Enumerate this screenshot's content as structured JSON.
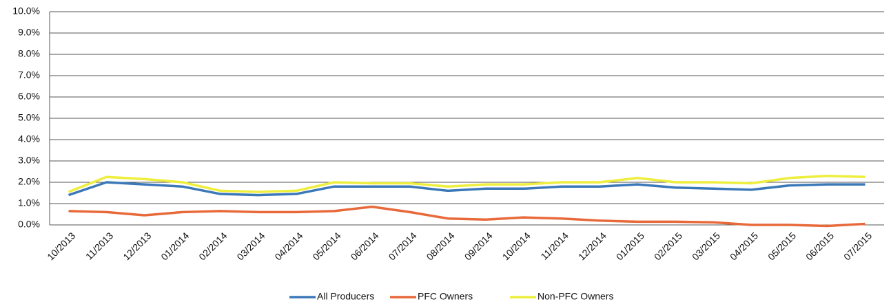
{
  "chart_data": {
    "type": "line",
    "categories": [
      "10/2013",
      "11/2013",
      "12/2013",
      "01/2014",
      "02/2014",
      "03/2014",
      "04/2014",
      "05/2014",
      "06/2014",
      "07/2014",
      "08/2014",
      "09/2014",
      "10/2014",
      "11/2014",
      "12/2014",
      "01/2015",
      "02/2015",
      "03/2015",
      "04/2015",
      "05/2015",
      "06/2015",
      "07/2015"
    ],
    "series": [
      {
        "name": "All Producers",
        "color": "#3b78b8",
        "values": [
          1.4,
          2.0,
          1.9,
          1.8,
          1.45,
          1.4,
          1.45,
          1.8,
          1.8,
          1.8,
          1.6,
          1.7,
          1.7,
          1.8,
          1.8,
          1.9,
          1.75,
          1.7,
          1.65,
          1.85,
          1.9,
          1.9
        ]
      },
      {
        "name": "PFC Owners",
        "color": "#e8693a",
        "values": [
          0.65,
          0.6,
          0.45,
          0.6,
          0.65,
          0.6,
          0.6,
          0.65,
          0.85,
          0.6,
          0.3,
          0.25,
          0.35,
          0.3,
          0.2,
          0.15,
          0.15,
          0.12,
          0.0,
          0.0,
          -0.05,
          0.05
        ]
      },
      {
        "name": "Non-PFC Owners",
        "color": "#eeee3c",
        "values": [
          1.55,
          2.25,
          2.15,
          2.0,
          1.6,
          1.55,
          1.6,
          2.0,
          1.95,
          1.95,
          1.8,
          1.9,
          1.9,
          2.0,
          2.0,
          2.2,
          2.0,
          2.0,
          1.95,
          2.2,
          2.3,
          2.25
        ]
      }
    ],
    "ylim": [
      0,
      10
    ],
    "yticks": [
      {
        "value": 0,
        "label": "0.0%"
      },
      {
        "value": 1,
        "label": "1.0%"
      },
      {
        "value": 2,
        "label": "2.0%"
      },
      {
        "value": 3,
        "label": "3.0%"
      },
      {
        "value": 4,
        "label": "4.0%"
      },
      {
        "value": 5,
        "label": "5.0%"
      },
      {
        "value": 6,
        "label": "6.0%"
      },
      {
        "value": 7,
        "label": "7.0%"
      },
      {
        "value": 8,
        "label": "8.0%"
      },
      {
        "value": 9,
        "label": "9.0%"
      },
      {
        "value": 10,
        "label": "10.0%"
      }
    ],
    "grid": true
  }
}
